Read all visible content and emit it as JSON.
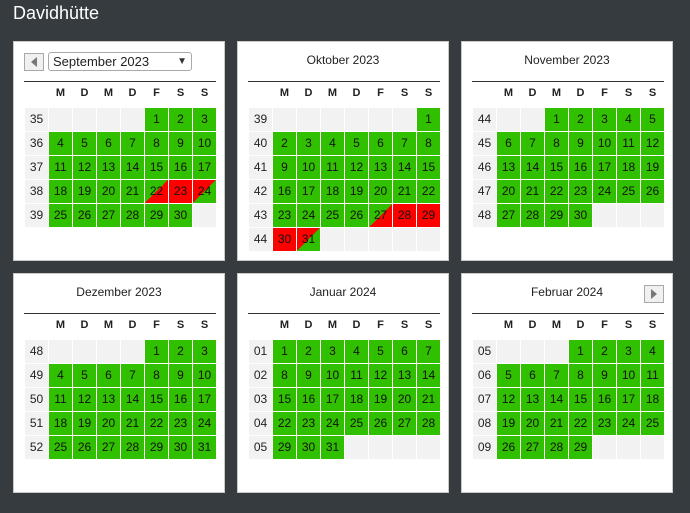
{
  "app": {
    "title": "Davidhütte"
  },
  "weekday_headers": [
    "M",
    "D",
    "M",
    "D",
    "F",
    "S",
    "S"
  ],
  "nav": {
    "prev_icon": "triangle-left-icon",
    "next_icon": "triangle-right-icon"
  },
  "colors": {
    "free": "#30c000",
    "booked": "#ff0000",
    "week": "#f2f2f2",
    "empty": "#f2f2f2"
  },
  "months": [
    {
      "title": "September 2023",
      "selector": true,
      "weeks": [
        {
          "wk": "35",
          "days": [
            null,
            null,
            null,
            null,
            [
              "1",
              "free"
            ],
            [
              "2",
              "free"
            ],
            [
              "3",
              "free"
            ]
          ]
        },
        {
          "wk": "36",
          "days": [
            [
              "4",
              "free"
            ],
            [
              "5",
              "free"
            ],
            [
              "6",
              "free"
            ],
            [
              "7",
              "free"
            ],
            [
              "8",
              "free"
            ],
            [
              "9",
              "free"
            ],
            [
              "10",
              "free"
            ]
          ]
        },
        {
          "wk": "37",
          "days": [
            [
              "11",
              "free"
            ],
            [
              "12",
              "free"
            ],
            [
              "13",
              "free"
            ],
            [
              "14",
              "free"
            ],
            [
              "15",
              "free"
            ],
            [
              "16",
              "free"
            ],
            [
              "17",
              "free"
            ]
          ]
        },
        {
          "wk": "38",
          "days": [
            [
              "18",
              "free"
            ],
            [
              "19",
              "free"
            ],
            [
              "20",
              "free"
            ],
            [
              "21",
              "free"
            ],
            [
              "22",
              "free-booked"
            ],
            [
              "23",
              "booked"
            ],
            [
              "24",
              "booked-free"
            ]
          ]
        },
        {
          "wk": "39",
          "days": [
            [
              "25",
              "free"
            ],
            [
              "26",
              "free"
            ],
            [
              "27",
              "free"
            ],
            [
              "28",
              "free"
            ],
            [
              "29",
              "free"
            ],
            [
              "30",
              "free"
            ],
            null
          ]
        }
      ]
    },
    {
      "title": "Oktober 2023",
      "weeks": [
        {
          "wk": "39",
          "days": [
            null,
            null,
            null,
            null,
            null,
            null,
            [
              "1",
              "free"
            ]
          ]
        },
        {
          "wk": "40",
          "days": [
            [
              "2",
              "free"
            ],
            [
              "3",
              "free"
            ],
            [
              "4",
              "free"
            ],
            [
              "5",
              "free"
            ],
            [
              "6",
              "free"
            ],
            [
              "7",
              "free"
            ],
            [
              "8",
              "free"
            ]
          ]
        },
        {
          "wk": "41",
          "days": [
            [
              "9",
              "free"
            ],
            [
              "10",
              "free"
            ],
            [
              "11",
              "free"
            ],
            [
              "12",
              "free"
            ],
            [
              "13",
              "free"
            ],
            [
              "14",
              "free"
            ],
            [
              "15",
              "free"
            ]
          ]
        },
        {
          "wk": "42",
          "days": [
            [
              "16",
              "free"
            ],
            [
              "17",
              "free"
            ],
            [
              "18",
              "free"
            ],
            [
              "19",
              "free"
            ],
            [
              "20",
              "free"
            ],
            [
              "21",
              "free"
            ],
            [
              "22",
              "free"
            ]
          ]
        },
        {
          "wk": "43",
          "days": [
            [
              "23",
              "free"
            ],
            [
              "24",
              "free"
            ],
            [
              "25",
              "free"
            ],
            [
              "26",
              "free"
            ],
            [
              "27",
              "free-booked"
            ],
            [
              "28",
              "booked"
            ],
            [
              "29",
              "booked"
            ]
          ]
        },
        {
          "wk": "44",
          "days": [
            [
              "30",
              "booked"
            ],
            [
              "31",
              "booked-free"
            ],
            null,
            null,
            null,
            null,
            null
          ]
        }
      ]
    },
    {
      "title": "November 2023",
      "weeks": [
        {
          "wk": "44",
          "days": [
            null,
            null,
            [
              "1",
              "free"
            ],
            [
              "2",
              "free"
            ],
            [
              "3",
              "free"
            ],
            [
              "4",
              "free"
            ],
            [
              "5",
              "free"
            ]
          ]
        },
        {
          "wk": "45",
          "days": [
            [
              "6",
              "free"
            ],
            [
              "7",
              "free"
            ],
            [
              "8",
              "free"
            ],
            [
              "9",
              "free"
            ],
            [
              "10",
              "free"
            ],
            [
              "11",
              "free"
            ],
            [
              "12",
              "free"
            ]
          ]
        },
        {
          "wk": "46",
          "days": [
            [
              "13",
              "free"
            ],
            [
              "14",
              "free"
            ],
            [
              "15",
              "free"
            ],
            [
              "16",
              "free"
            ],
            [
              "17",
              "free"
            ],
            [
              "18",
              "free"
            ],
            [
              "19",
              "free"
            ]
          ]
        },
        {
          "wk": "47",
          "days": [
            [
              "20",
              "free"
            ],
            [
              "21",
              "free"
            ],
            [
              "22",
              "free"
            ],
            [
              "23",
              "free"
            ],
            [
              "24",
              "free"
            ],
            [
              "25",
              "free"
            ],
            [
              "26",
              "free"
            ]
          ]
        },
        {
          "wk": "48",
          "days": [
            [
              "27",
              "free"
            ],
            [
              "28",
              "free"
            ],
            [
              "29",
              "free"
            ],
            [
              "30",
              "free"
            ],
            null,
            null,
            null
          ]
        }
      ]
    },
    {
      "title": "Dezember 2023",
      "weeks": [
        {
          "wk": "48",
          "days": [
            null,
            null,
            null,
            null,
            [
              "1",
              "free"
            ],
            [
              "2",
              "free"
            ],
            [
              "3",
              "free"
            ]
          ]
        },
        {
          "wk": "49",
          "days": [
            [
              "4",
              "free"
            ],
            [
              "5",
              "free"
            ],
            [
              "6",
              "free"
            ],
            [
              "7",
              "free"
            ],
            [
              "8",
              "free"
            ],
            [
              "9",
              "free"
            ],
            [
              "10",
              "free"
            ]
          ]
        },
        {
          "wk": "50",
          "days": [
            [
              "11",
              "free"
            ],
            [
              "12",
              "free"
            ],
            [
              "13",
              "free"
            ],
            [
              "14",
              "free"
            ],
            [
              "15",
              "free"
            ],
            [
              "16",
              "free"
            ],
            [
              "17",
              "free"
            ]
          ]
        },
        {
          "wk": "51",
          "days": [
            [
              "18",
              "free"
            ],
            [
              "19",
              "free"
            ],
            [
              "20",
              "free"
            ],
            [
              "21",
              "free"
            ],
            [
              "22",
              "free"
            ],
            [
              "23",
              "free"
            ],
            [
              "24",
              "free"
            ]
          ]
        },
        {
          "wk": "52",
          "days": [
            [
              "25",
              "free"
            ],
            [
              "26",
              "free"
            ],
            [
              "27",
              "free"
            ],
            [
              "28",
              "free"
            ],
            [
              "29",
              "free"
            ],
            [
              "30",
              "free"
            ],
            [
              "31",
              "free"
            ]
          ]
        }
      ]
    },
    {
      "title": "Januar 2024",
      "weeks": [
        {
          "wk": "01",
          "days": [
            [
              "1",
              "free"
            ],
            [
              "2",
              "free"
            ],
            [
              "3",
              "free"
            ],
            [
              "4",
              "free"
            ],
            [
              "5",
              "free"
            ],
            [
              "6",
              "free"
            ],
            [
              "7",
              "free"
            ]
          ]
        },
        {
          "wk": "02",
          "days": [
            [
              "8",
              "free"
            ],
            [
              "9",
              "free"
            ],
            [
              "10",
              "free"
            ],
            [
              "11",
              "free"
            ],
            [
              "12",
              "free"
            ],
            [
              "13",
              "free"
            ],
            [
              "14",
              "free"
            ]
          ]
        },
        {
          "wk": "03",
          "days": [
            [
              "15",
              "free"
            ],
            [
              "16",
              "free"
            ],
            [
              "17",
              "free"
            ],
            [
              "18",
              "free"
            ],
            [
              "19",
              "free"
            ],
            [
              "20",
              "free"
            ],
            [
              "21",
              "free"
            ]
          ]
        },
        {
          "wk": "04",
          "days": [
            [
              "22",
              "free"
            ],
            [
              "23",
              "free"
            ],
            [
              "24",
              "free"
            ],
            [
              "25",
              "free"
            ],
            [
              "26",
              "free"
            ],
            [
              "27",
              "free"
            ],
            [
              "28",
              "free"
            ]
          ]
        },
        {
          "wk": "05",
          "days": [
            [
              "29",
              "free"
            ],
            [
              "30",
              "free"
            ],
            [
              "31",
              "free"
            ],
            null,
            null,
            null,
            null
          ]
        }
      ]
    },
    {
      "title": "Februar 2024",
      "next": true,
      "weeks": [
        {
          "wk": "05",
          "days": [
            null,
            null,
            null,
            [
              "1",
              "free"
            ],
            [
              "2",
              "free"
            ],
            [
              "3",
              "free"
            ],
            [
              "4",
              "free"
            ]
          ]
        },
        {
          "wk": "06",
          "days": [
            [
              "5",
              "free"
            ],
            [
              "6",
              "free"
            ],
            [
              "7",
              "free"
            ],
            [
              "8",
              "free"
            ],
            [
              "9",
              "free"
            ],
            [
              "10",
              "free"
            ],
            [
              "11",
              "free"
            ]
          ]
        },
        {
          "wk": "07",
          "days": [
            [
              "12",
              "free"
            ],
            [
              "13",
              "free"
            ],
            [
              "14",
              "free"
            ],
            [
              "15",
              "free"
            ],
            [
              "16",
              "free"
            ],
            [
              "17",
              "free"
            ],
            [
              "18",
              "free"
            ]
          ]
        },
        {
          "wk": "08",
          "days": [
            [
              "19",
              "free"
            ],
            [
              "20",
              "free"
            ],
            [
              "21",
              "free"
            ],
            [
              "22",
              "free"
            ],
            [
              "23",
              "free"
            ],
            [
              "24",
              "free"
            ],
            [
              "25",
              "free"
            ]
          ]
        },
        {
          "wk": "09",
          "days": [
            [
              "26",
              "free"
            ],
            [
              "27",
              "free"
            ],
            [
              "28",
              "free"
            ],
            [
              "29",
              "free"
            ],
            null,
            null,
            null
          ]
        }
      ]
    }
  ]
}
